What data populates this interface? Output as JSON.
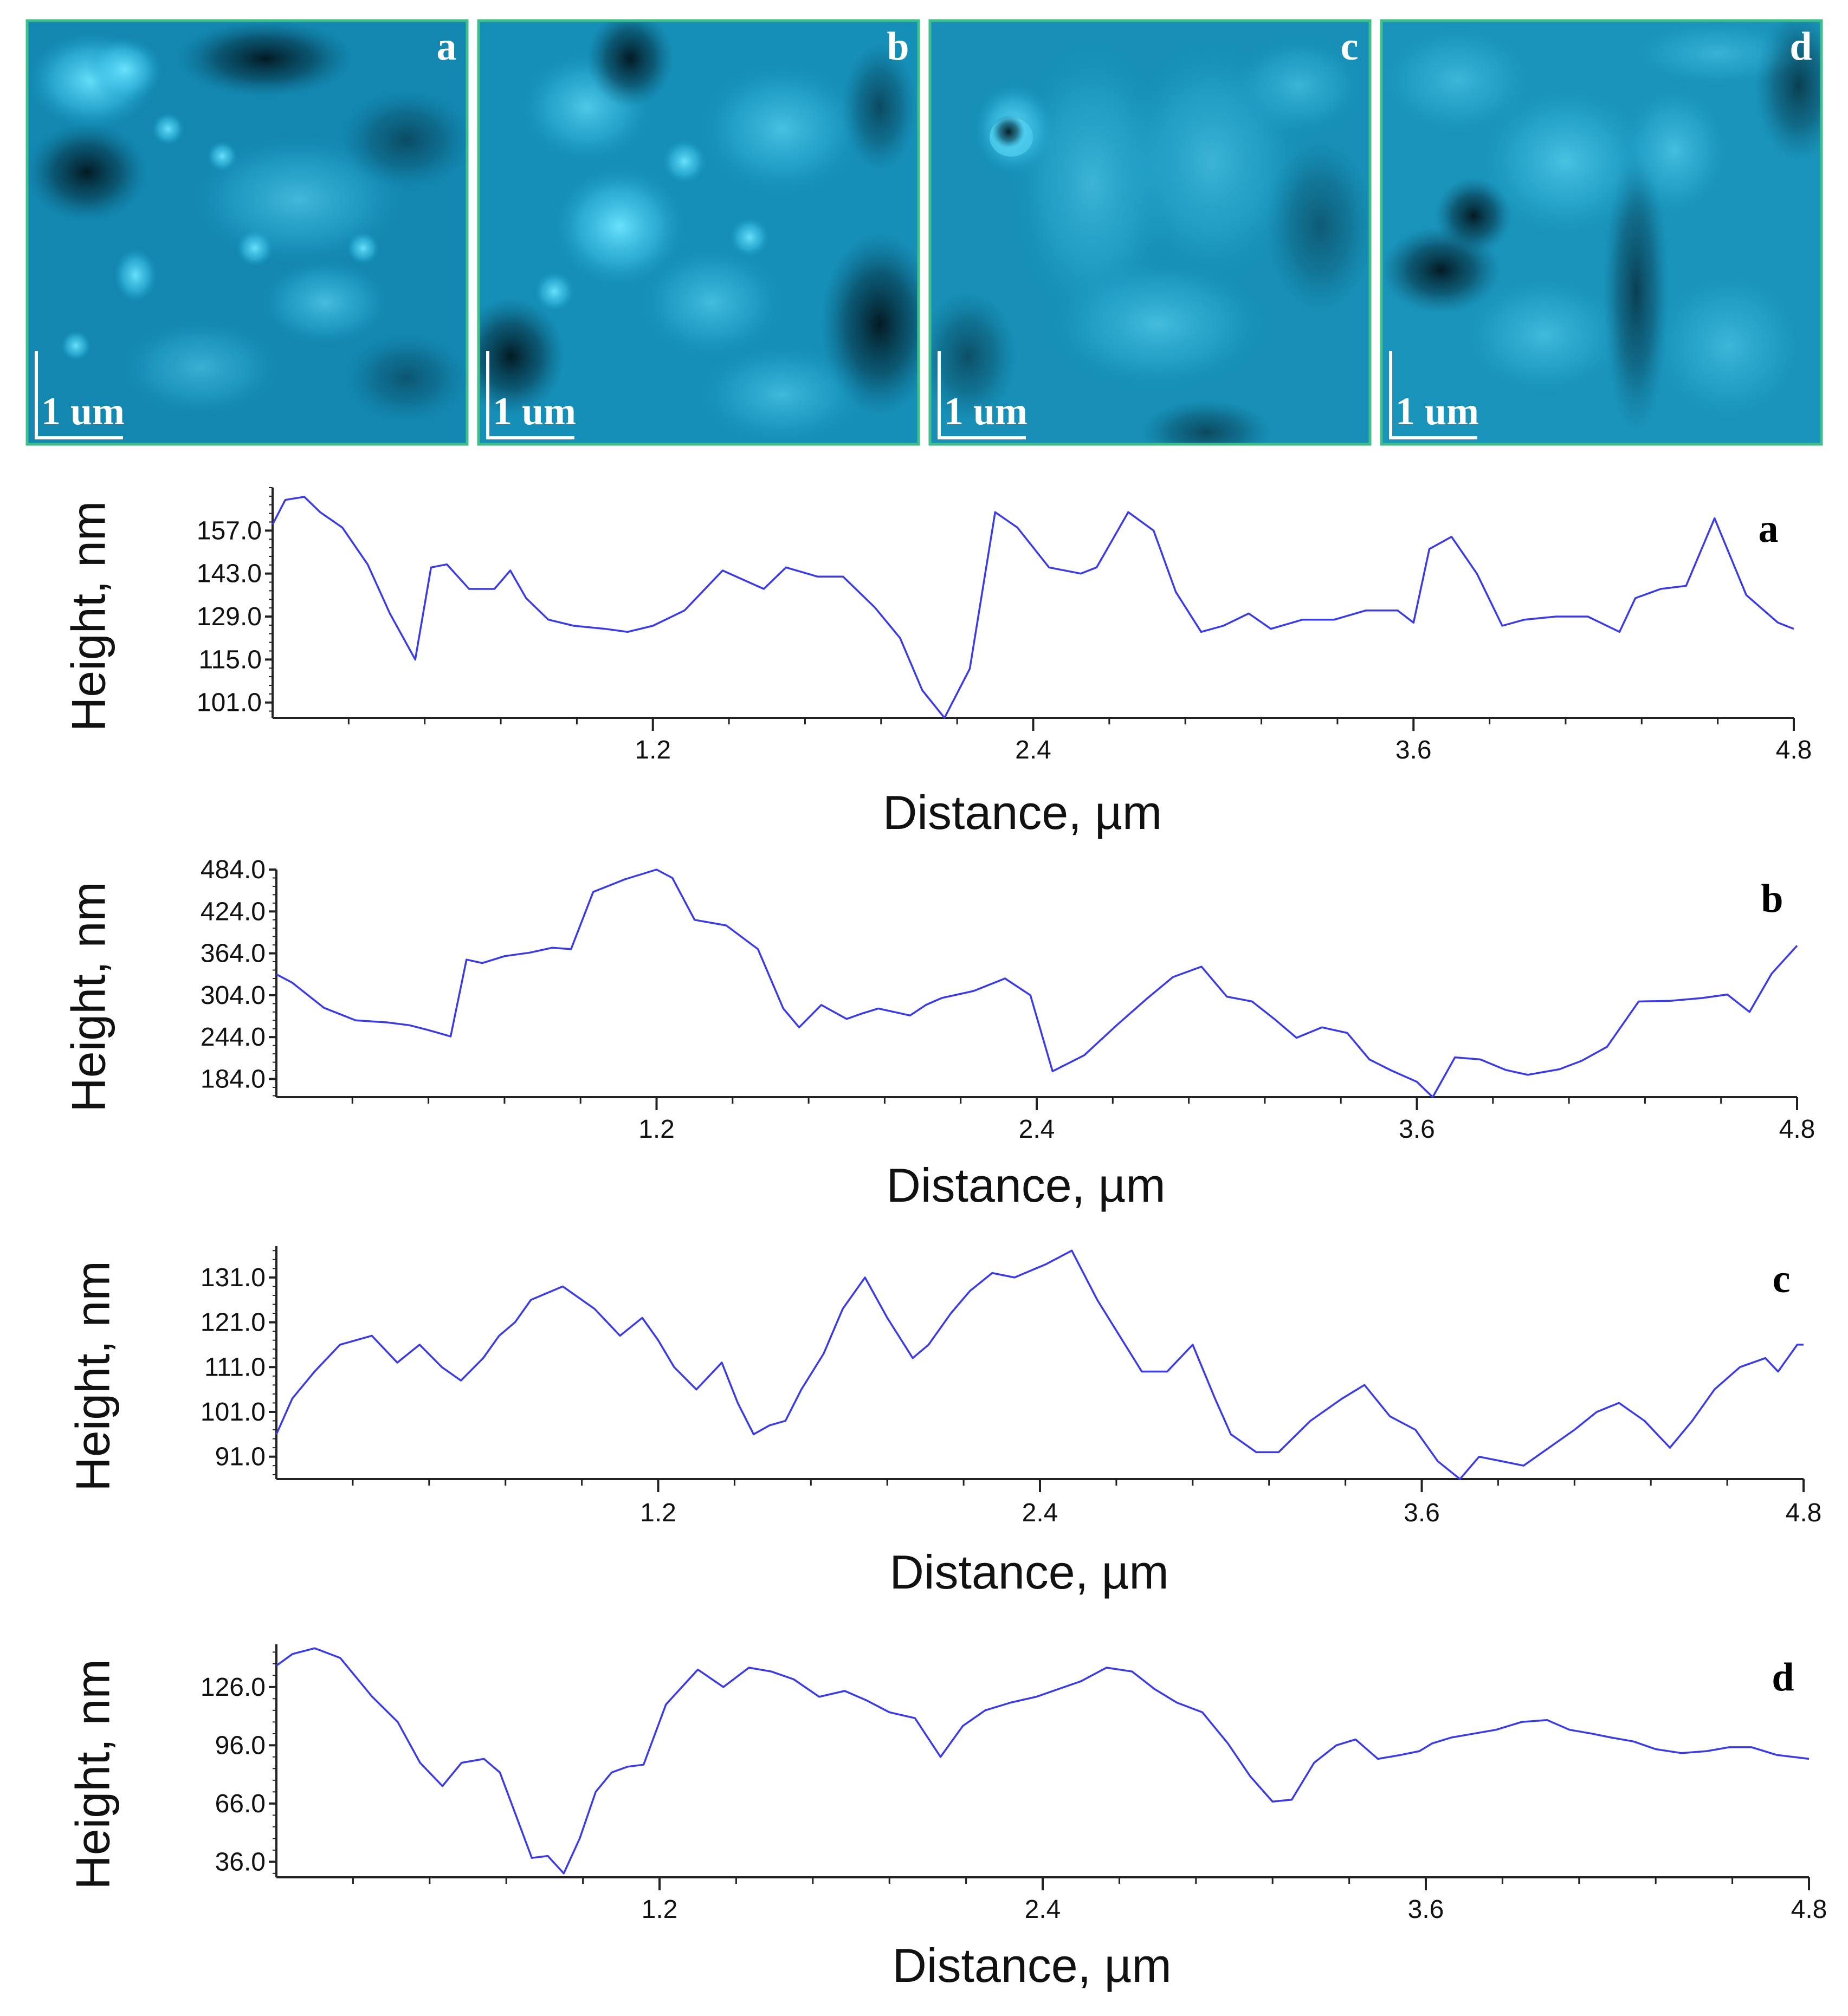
{
  "colors": {
    "line": "#3b3be6",
    "frame": "#3fbf8a",
    "axis": "#222222",
    "image_bright": "#4fd6f4",
    "image_mid": "#1190b8",
    "image_dark": "#03222e"
  },
  "afm_images": [
    {
      "letter": "a",
      "scale_label": "1 um"
    },
    {
      "letter": "b",
      "scale_label": "1 um"
    },
    {
      "letter": "c",
      "scale_label": "1 um"
    },
    {
      "letter": "d",
      "scale_label": "1 um"
    }
  ],
  "chart_data": [
    {
      "type": "line",
      "panel": "a",
      "title": "",
      "xlabel": "Distance, µm",
      "ylabel": "Height, nm",
      "xlim": [
        0,
        4.8
      ],
      "ylim": [
        96,
        171
      ],
      "xticks": [
        "1.2",
        "2.4",
        "3.6",
        "4.8"
      ],
      "xtick_values": [
        1.2,
        2.4,
        3.6,
        4.8
      ],
      "yticks": [
        "101.0",
        "115.0",
        "129.0",
        "143.0",
        "157.0"
      ],
      "ytick_values": [
        101,
        115,
        129,
        143,
        157
      ],
      "series": [
        {
          "name": "a",
          "x": [
            0,
            0.04,
            0.1,
            0.15,
            0.22,
            0.3,
            0.37,
            0.45,
            0.5,
            0.55,
            0.62,
            0.7,
            0.75,
            0.8,
            0.87,
            0.95,
            1.05,
            1.12,
            1.2,
            1.3,
            1.42,
            1.55,
            1.62,
            1.72,
            1.8,
            1.9,
            1.98,
            2.05,
            2.12,
            2.2,
            2.28,
            2.35,
            2.45,
            2.55,
            2.6,
            2.7,
            2.78,
            2.85,
            2.93,
            3.0,
            3.08,
            3.15,
            3.25,
            3.35,
            3.45,
            3.55,
            3.6,
            3.65,
            3.72,
            3.8,
            3.88,
            3.95,
            4.05,
            4.15,
            4.25,
            4.3,
            4.38,
            4.46,
            4.55,
            4.65,
            4.75,
            4.8
          ],
          "values": [
            159,
            167,
            168,
            163,
            158,
            146,
            130,
            115,
            145,
            146,
            138,
            138,
            144,
            135,
            128,
            126,
            125,
            124,
            126,
            131,
            144,
            138,
            145,
            142,
            142,
            132,
            122,
            105,
            96,
            112,
            163,
            158,
            145,
            143,
            145,
            163,
            157,
            137,
            124,
            126,
            130,
            125,
            128,
            128,
            131,
            131,
            127,
            151,
            155,
            143,
            126,
            128,
            129,
            129,
            124,
            135,
            138,
            139,
            161,
            136,
            127,
            125
          ]
        }
      ]
    },
    {
      "type": "line",
      "panel": "b",
      "title": "",
      "xlabel": "Distance, µm",
      "ylabel": "Height, nm",
      "xlim": [
        0,
        4.8
      ],
      "ylim": [
        158,
        484
      ],
      "xticks": [
        "1.2",
        "2.4",
        "3.6",
        "4.8"
      ],
      "xtick_values": [
        1.2,
        2.4,
        3.6,
        4.8
      ],
      "yticks": [
        "184.0",
        "244.0",
        "304.0",
        "364.0",
        "424.0",
        "484.0"
      ],
      "ytick_values": [
        184,
        244,
        304,
        364,
        424,
        484
      ],
      "series": [
        {
          "name": "b",
          "x": [
            0,
            0.05,
            0.15,
            0.25,
            0.35,
            0.42,
            0.48,
            0.55,
            0.6,
            0.65,
            0.72,
            0.8,
            0.87,
            0.93,
            1.0,
            1.1,
            1.2,
            1.25,
            1.32,
            1.42,
            1.52,
            1.6,
            1.65,
            1.72,
            1.8,
            1.85,
            1.9,
            2.0,
            2.05,
            2.1,
            2.2,
            2.3,
            2.38,
            2.45,
            2.55,
            2.65,
            2.75,
            2.83,
            2.92,
            3.0,
            3.08,
            3.15,
            3.22,
            3.3,
            3.38,
            3.45,
            3.52,
            3.6,
            3.65,
            3.72,
            3.8,
            3.88,
            3.95,
            4.05,
            4.12,
            4.2,
            4.3,
            4.4,
            4.5,
            4.58,
            4.65,
            4.72,
            4.8
          ],
          "values": [
            334,
            322,
            286,
            268,
            265,
            261,
            254,
            245,
            355,
            350,
            360,
            365,
            372,
            370,
            452,
            470,
            484,
            472,
            412,
            404,
            370,
            285,
            258,
            290,
            270,
            278,
            285,
            275,
            290,
            300,
            310,
            328,
            304,
            195,
            218,
            260,
            300,
            330,
            345,
            302,
            295,
            270,
            243,
            258,
            250,
            212,
            196,
            180,
            158,
            215,
            212,
            197,
            190,
            198,
            210,
            230,
            295,
            296,
            300,
            305,
            280,
            335,
            375
          ]
        }
      ]
    },
    {
      "type": "line",
      "panel": "c",
      "title": "",
      "xlabel": "Distance, µm",
      "ylabel": "Height, nm",
      "xlim": [
        0,
        4.8
      ],
      "ylim": [
        86,
        138
      ],
      "xticks": [
        "1.2",
        "2.4",
        "3.6",
        "4.8"
      ],
      "xtick_values": [
        1.2,
        2.4,
        3.6,
        4.8
      ],
      "yticks": [
        "91.0",
        "101.0",
        "111.0",
        "121.0",
        "131.0"
      ],
      "ytick_values": [
        91,
        101,
        111,
        121,
        131
      ],
      "series": [
        {
          "name": "c",
          "x": [
            0,
            0.05,
            0.12,
            0.2,
            0.3,
            0.38,
            0.45,
            0.52,
            0.58,
            0.65,
            0.7,
            0.75,
            0.8,
            0.9,
            1.0,
            1.08,
            1.15,
            1.2,
            1.25,
            1.32,
            1.4,
            1.45,
            1.5,
            1.55,
            1.6,
            1.65,
            1.72,
            1.78,
            1.85,
            1.92,
            2.0,
            2.05,
            2.12,
            2.18,
            2.25,
            2.32,
            2.42,
            2.5,
            2.58,
            2.65,
            2.72,
            2.8,
            2.88,
            2.95,
            3.0,
            3.08,
            3.15,
            3.25,
            3.35,
            3.42,
            3.5,
            3.58,
            3.65,
            3.72,
            3.78,
            3.85,
            3.92,
            4.0,
            4.08,
            4.15,
            4.22,
            4.3,
            4.38,
            4.45,
            4.52,
            4.6,
            4.68,
            4.72,
            4.78,
            4.8
          ],
          "values": [
            96,
            104,
            110,
            116,
            118,
            112,
            116,
            111,
            108,
            113,
            118,
            121,
            126,
            129,
            124,
            118,
            122,
            117,
            111,
            106,
            112,
            103,
            96,
            98,
            99,
            106,
            114,
            124,
            131,
            122,
            113,
            116,
            123,
            128,
            132,
            131,
            134,
            137,
            126,
            118,
            110,
            110,
            116,
            104,
            96,
            92,
            92,
            99,
            104,
            107,
            100,
            97,
            90,
            86,
            91,
            90,
            89,
            93,
            97,
            101,
            103,
            99,
            93,
            99,
            106,
            111,
            113,
            110,
            116,
            116
          ]
        }
      ]
    },
    {
      "type": "line",
      "panel": "d",
      "title": "",
      "xlabel": "Distance, µm",
      "ylabel": "Height, nm",
      "xlim": [
        0,
        4.8
      ],
      "ylim": [
        28,
        148
      ],
      "xticks": [
        "1.2",
        "2.4",
        "3.6",
        "4.8"
      ],
      "xtick_values": [
        1.2,
        2.4,
        3.6,
        4.8
      ],
      "yticks": [
        "36.0",
        "66.0",
        "96.0",
        "126.0"
      ],
      "ytick_values": [
        36,
        66,
        96,
        126
      ],
      "series": [
        {
          "name": "d",
          "x": [
            0,
            0.05,
            0.12,
            0.2,
            0.3,
            0.38,
            0.45,
            0.52,
            0.58,
            0.65,
            0.7,
            0.75,
            0.8,
            0.85,
            0.9,
            0.95,
            1.0,
            1.05,
            1.1,
            1.15,
            1.22,
            1.32,
            1.4,
            1.48,
            1.55,
            1.62,
            1.7,
            1.78,
            1.85,
            1.92,
            2.0,
            2.08,
            2.15,
            2.22,
            2.3,
            2.38,
            2.45,
            2.52,
            2.6,
            2.68,
            2.75,
            2.82,
            2.9,
            2.98,
            3.05,
            3.12,
            3.18,
            3.25,
            3.32,
            3.38,
            3.45,
            3.52,
            3.58,
            3.62,
            3.68,
            3.75,
            3.82,
            3.9,
            3.98,
            4.05,
            4.12,
            4.18,
            4.25,
            4.32,
            4.4,
            4.48,
            4.55,
            4.62,
            4.7,
            4.75,
            4.8
          ],
          "values": [
            137,
            143,
            146,
            141,
            121,
            108,
            87,
            75,
            87,
            89,
            82,
            60,
            38,
            39,
            30,
            48,
            72,
            82,
            85,
            86,
            117,
            135,
            126,
            136,
            134,
            130,
            121,
            124,
            119,
            113,
            110,
            90,
            106,
            114,
            118,
            121,
            125,
            129,
            136,
            134,
            125,
            118,
            113,
            97,
            80,
            67,
            68,
            87,
            96,
            99,
            89,
            91,
            93,
            97,
            100,
            102,
            104,
            108,
            109,
            104,
            102,
            100,
            98,
            94,
            92,
            93,
            95,
            95,
            91,
            90,
            89
          ]
        }
      ]
    }
  ]
}
